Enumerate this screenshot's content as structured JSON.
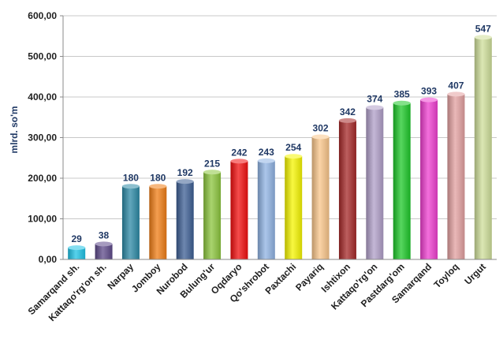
{
  "chart_data": {
    "type": "bar",
    "ylabel": "mlrd. so'm",
    "ylim": [
      0,
      600
    ],
    "yticks": [
      0,
      100,
      200,
      300,
      400,
      500,
      600
    ],
    "ytick_labels": [
      "0,00",
      "100,00",
      "200,00",
      "300,00",
      "400,00",
      "500,00",
      "600,00"
    ],
    "grid": true,
    "legend": "none",
    "categories": [
      "Samarqand sh.",
      "Kattaqo'rg'on sh.",
      "Narpay",
      "Jomboy",
      "Nurobod",
      "Bulung'ur",
      "Oqdaryo",
      "Qo'shrobot",
      "Paxtachi",
      "Payariq",
      "Ishtixon",
      "Kattaqo'rg'on",
      "Pastdarg'om",
      "Samarqand",
      "Toyloq",
      "Urgut"
    ],
    "values": [
      29,
      38,
      180,
      180,
      192,
      215,
      242,
      243,
      254,
      302,
      342,
      374,
      385,
      393,
      407,
      547
    ],
    "colors": [
      "#1fc3e6",
      "#5e4a8a",
      "#2d8aa6",
      "#f07e16",
      "#3d5f94",
      "#8cc63e",
      "#f20f0f",
      "#8fb3e3",
      "#f5f500",
      "#f9c68a",
      "#a52828",
      "#b09fc8",
      "#1fc82a",
      "#ef3fd0",
      "#e3a0a0",
      "#cfdf9a"
    ]
  }
}
